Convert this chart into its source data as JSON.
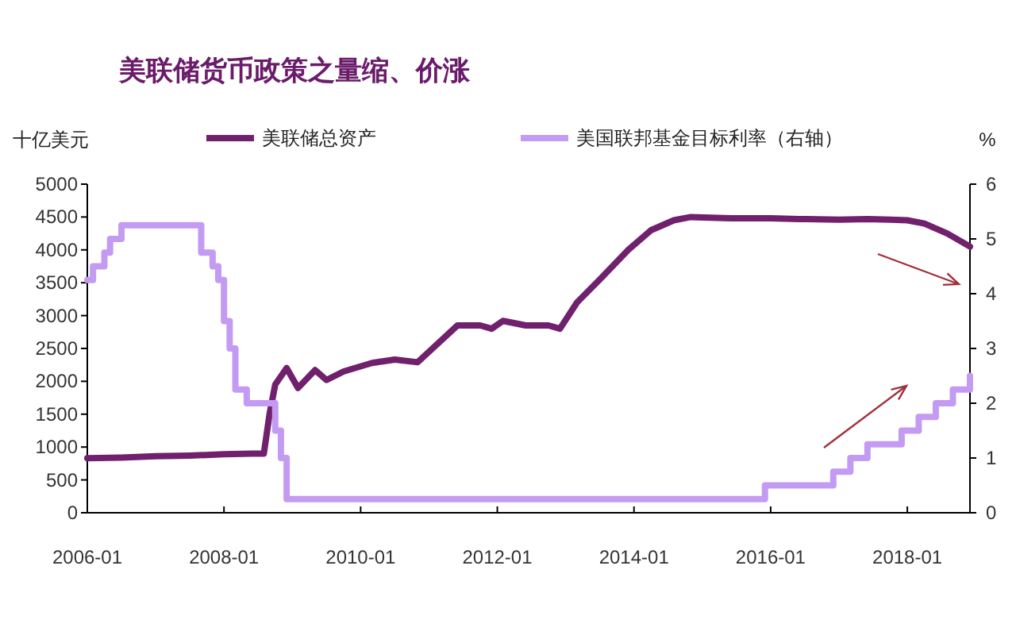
{
  "chart_data": {
    "type": "line",
    "title": "美联储货币政策之量缩、价涨",
    "ylabel": "十亿美元",
    "y2label": "%",
    "xlim": [
      "2006-01",
      "2018-12"
    ],
    "xticks": [
      {
        "value": "2006-01",
        "label": "2006-01"
      },
      {
        "value": "2008-01",
        "label": "2008-01"
      },
      {
        "value": "2010-01",
        "label": "2010-01"
      },
      {
        "value": "2012-01",
        "label": "2012-01"
      },
      {
        "value": "2014-01",
        "label": "2014-01"
      },
      {
        "value": "2016-01",
        "label": "2016-01"
      },
      {
        "value": "2018-01",
        "label": "2018-01"
      }
    ],
    "ylim": [
      0,
      5000
    ],
    "yticks": [
      0,
      500,
      1000,
      1500,
      2000,
      2500,
      3000,
      3500,
      4000,
      4500,
      5000
    ],
    "y2lim": [
      0,
      6
    ],
    "y2ticks": [
      0,
      1,
      2,
      3,
      4,
      5,
      6
    ],
    "legend": "top",
    "grid": false,
    "marker": "none",
    "line_style": "solid",
    "series": [
      {
        "name": "美联储总资产",
        "color": "#70206c",
        "type": "line",
        "x": [
          "2006-01",
          "2006-07",
          "2007-01",
          "2007-07",
          "2008-01",
          "2008-06",
          "2008-08",
          "2008-09",
          "2008-10",
          "2008-12",
          "2009-02",
          "2009-05",
          "2009-07",
          "2009-10",
          "2010-03",
          "2010-07",
          "2010-11",
          "2011-01",
          "2011-06",
          "2011-10",
          "2011-12",
          "2012-02",
          "2012-06",
          "2012-10",
          "2012-12",
          "2013-03",
          "2013-07",
          "2013-12",
          "2014-04",
          "2014-08",
          "2014-11",
          "2015-06",
          "2016-01",
          "2016-06",
          "2017-01",
          "2017-06",
          "2017-10",
          "2018-01",
          "2018-04",
          "2018-08",
          "2018-12"
        ],
        "values": [
          830,
          840,
          860,
          870,
          890,
          900,
          900,
          1500,
          1950,
          2200,
          1900,
          2170,
          2020,
          2150,
          2280,
          2330,
          2290,
          2450,
          2850,
          2850,
          2800,
          2920,
          2850,
          2850,
          2800,
          3200,
          3550,
          4000,
          4300,
          4450,
          4500,
          4480,
          4480,
          4470,
          4460,
          4470,
          4460,
          4450,
          4400,
          4250,
          4050
        ]
      },
      {
        "name": "美国联邦基金目标利率（右轴）",
        "color": "#c49bf2",
        "type": "step",
        "axis": "y2",
        "x": [
          "2006-01",
          "2006-02",
          "2006-04",
          "2006-05",
          "2006-07",
          "2007-09",
          "2007-11",
          "2007-12",
          "2008-01",
          "2008-02",
          "2008-03",
          "2008-05",
          "2008-10",
          "2008-11",
          "2008-12",
          "2015-12",
          "2016-12",
          "2017-03",
          "2017-06",
          "2017-12",
          "2018-03",
          "2018-06",
          "2018-09",
          "2018-12"
        ],
        "values": [
          4.25,
          4.5,
          4.75,
          5.0,
          5.25,
          4.75,
          4.5,
          4.25,
          3.5,
          3.0,
          2.25,
          2.0,
          1.5,
          1.0,
          0.25,
          0.5,
          0.75,
          1.0,
          1.25,
          1.5,
          1.75,
          2.0,
          2.25,
          2.5
        ]
      }
    ]
  }
}
